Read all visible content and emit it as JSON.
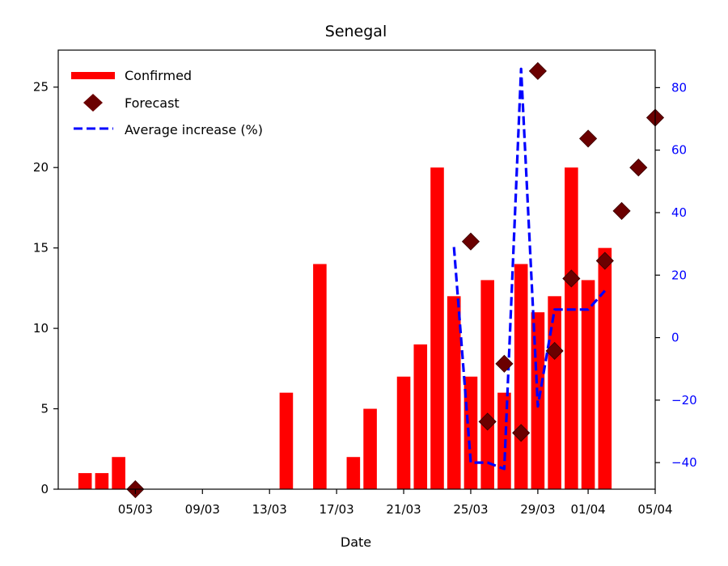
{
  "chart_data": {
    "type": "bar+scatter+line",
    "title": "Senegal",
    "xlabel": "Date",
    "ylabel": "",
    "ylabel_right": "",
    "x_range": [
      "2020-03-01",
      "2020-04-05"
    ],
    "ylim": [
      0,
      27.3
    ],
    "ylim_right": [
      -48.5,
      92
    ],
    "x_ticks": [
      {
        "date": "2020-03-05",
        "label": "05/03"
      },
      {
        "date": "2020-03-09",
        "label": "09/03"
      },
      {
        "date": "2020-03-13",
        "label": "13/03"
      },
      {
        "date": "2020-03-17",
        "label": "17/03"
      },
      {
        "date": "2020-03-21",
        "label": "21/03"
      },
      {
        "date": "2020-03-25",
        "label": "25/03"
      },
      {
        "date": "2020-03-29",
        "label": "29/03"
      },
      {
        "date": "2020-04-01",
        "label": "01/04"
      },
      {
        "date": "2020-04-05",
        "label": "05/04"
      }
    ],
    "y_ticks": [
      0,
      5,
      10,
      15,
      20,
      25
    ],
    "y_ticks_right": [
      -40,
      -20,
      0,
      20,
      40,
      60,
      80
    ],
    "series": [
      {
        "name": "Confirmed",
        "type": "bar",
        "color": "#ff0000",
        "points": [
          {
            "date": "2020-03-02",
            "value": 1
          },
          {
            "date": "2020-03-03",
            "value": 1
          },
          {
            "date": "2020-03-04",
            "value": 2
          },
          {
            "date": "2020-03-14",
            "value": 6
          },
          {
            "date": "2020-03-16",
            "value": 14
          },
          {
            "date": "2020-03-18",
            "value": 2
          },
          {
            "date": "2020-03-19",
            "value": 5
          },
          {
            "date": "2020-03-21",
            "value": 7
          },
          {
            "date": "2020-03-22",
            "value": 9
          },
          {
            "date": "2020-03-23",
            "value": 20
          },
          {
            "date": "2020-03-24",
            "value": 12
          },
          {
            "date": "2020-03-25",
            "value": 7
          },
          {
            "date": "2020-03-26",
            "value": 13
          },
          {
            "date": "2020-03-27",
            "value": 6
          },
          {
            "date": "2020-03-28",
            "value": 14
          },
          {
            "date": "2020-03-29",
            "value": 11
          },
          {
            "date": "2020-03-30",
            "value": 12
          },
          {
            "date": "2020-03-31",
            "value": 20
          },
          {
            "date": "2020-04-01",
            "value": 13
          },
          {
            "date": "2020-04-02",
            "value": 15
          }
        ]
      },
      {
        "name": "Forecast",
        "type": "scatter",
        "marker": "diamond",
        "color": "#6b0000",
        "points": [
          {
            "date": "2020-03-05",
            "value": 0
          },
          {
            "date": "2020-03-25",
            "value": 15.4
          },
          {
            "date": "2020-03-26",
            "value": 4.2
          },
          {
            "date": "2020-03-27",
            "value": 7.8
          },
          {
            "date": "2020-03-28",
            "value": 3.5
          },
          {
            "date": "2020-03-29",
            "value": 26
          },
          {
            "date": "2020-03-30",
            "value": 8.6
          },
          {
            "date": "2020-03-31",
            "value": 13.1
          },
          {
            "date": "2020-04-01",
            "value": 21.8
          },
          {
            "date": "2020-04-02",
            "value": 14.2
          },
          {
            "date": "2020-04-03",
            "value": 17.3
          },
          {
            "date": "2020-04-04",
            "value": 20
          },
          {
            "date": "2020-04-05",
            "value": 23.1
          }
        ]
      },
      {
        "name": "Average increase (%)",
        "type": "line",
        "axis": "right",
        "style": "dashed",
        "color": "#0000ff",
        "points": [
          {
            "date": "2020-03-24",
            "value": 29
          },
          {
            "date": "2020-03-25",
            "value": -40
          },
          {
            "date": "2020-03-26",
            "value": -40
          },
          {
            "date": "2020-03-27",
            "value": -42
          },
          {
            "date": "2020-03-28",
            "value": 86
          },
          {
            "date": "2020-03-29",
            "value": -22
          },
          {
            "date": "2020-03-30",
            "value": 9
          },
          {
            "date": "2020-03-31",
            "value": 9
          },
          {
            "date": "2020-04-01",
            "value": 9
          },
          {
            "date": "2020-04-02",
            "value": 15
          }
        ]
      }
    ],
    "legend_position": "top-left",
    "grid": false
  }
}
